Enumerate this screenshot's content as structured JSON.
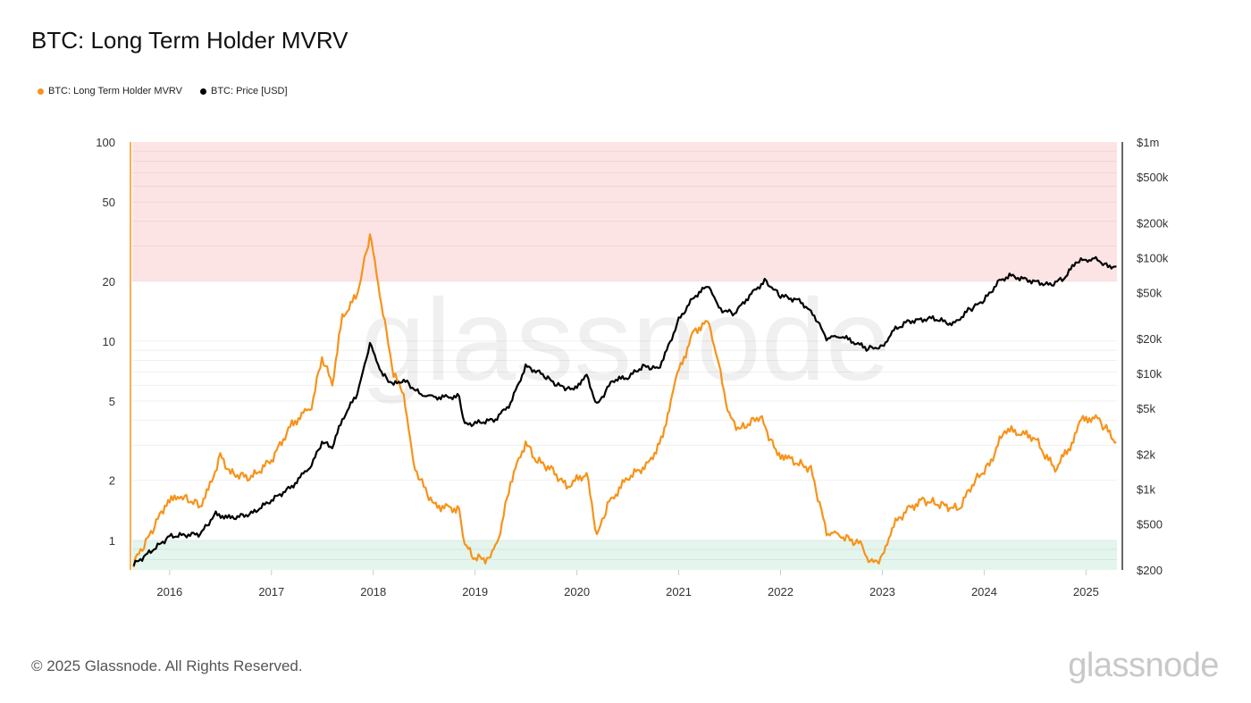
{
  "title": "BTC: Long Term Holder MVRV",
  "footer": "© 2025 Glassnode. All Rights Reserved.",
  "watermark": "glassnode",
  "chart_data": {
    "type": "line",
    "title": "BTC: Long Term Holder MVRV",
    "legend_position": "top-left",
    "grid": true,
    "x_range": [
      "2015-08-20",
      "2025-04-22"
    ],
    "x_ticks": [
      "2016",
      "2017",
      "2018",
      "2019",
      "2020",
      "2021",
      "2022",
      "2023",
      "2024",
      "2025"
    ],
    "y_left": {
      "scale": "log",
      "range": [
        0.71,
        100
      ],
      "ticks": [
        "1",
        "2",
        "5",
        "10",
        "20",
        "50",
        "100"
      ],
      "tick_values": [
        1,
        2,
        5,
        10,
        20,
        50,
        100
      ]
    },
    "y_right": {
      "scale": "log",
      "range": [
        200,
        1000000
      ],
      "ticks": [
        "$200",
        "$500",
        "$1k",
        "$2k",
        "$5k",
        "$10k",
        "$20k",
        "$50k",
        "$100k",
        "$200k",
        "$500k",
        "$1m"
      ],
      "tick_values": [
        200,
        500,
        1000,
        2000,
        5000,
        10000,
        20000,
        50000,
        100000,
        200000,
        500000,
        1000000
      ]
    },
    "bands": [
      {
        "axis": "left",
        "from": 20,
        "to": 100,
        "color": "#fde4e4"
      },
      {
        "axis": "left",
        "from": 0.71,
        "to": 1,
        "color": "#e3f5ec"
      }
    ],
    "series": [
      {
        "name": "BTC: Long Term Holder MVRV",
        "axis": "left",
        "color": "#f7931a",
        "points": [
          [
            "2015-08-25",
            0.77
          ],
          [
            "2015-10-20",
            1.05
          ],
          [
            "2015-12-15",
            1.5
          ],
          [
            "2016-02-05",
            1.67
          ],
          [
            "2016-04-20",
            1.5
          ],
          [
            "2016-05-25",
            1.86
          ],
          [
            "2016-07-01",
            2.67
          ],
          [
            "2016-08-07",
            2.17
          ],
          [
            "2016-10-20",
            2.06
          ],
          [
            "2017-01-01",
            2.53
          ],
          [
            "2017-03-15",
            3.83
          ],
          [
            "2017-05-25",
            4.7
          ],
          [
            "2017-07-01",
            8.3
          ],
          [
            "2017-08-07",
            6.1
          ],
          [
            "2017-09-12",
            13.2
          ],
          [
            "2017-11-05",
            17.1
          ],
          [
            "2017-12-20",
            34.5
          ],
          [
            "2018-02-05",
            13.9
          ],
          [
            "2018-03-15",
            6.8
          ],
          [
            "2018-04-20",
            5.5
          ],
          [
            "2018-05-25",
            2.4
          ],
          [
            "2018-07-01",
            1.86
          ],
          [
            "2018-08-07",
            1.5
          ],
          [
            "2018-11-05",
            1.43
          ],
          [
            "2018-11-25",
            0.95
          ],
          [
            "2019-01-01",
            0.81
          ],
          [
            "2019-02-25",
            0.81
          ],
          [
            "2019-04-01",
            1.1
          ],
          [
            "2019-05-08",
            1.96
          ],
          [
            "2019-07-01",
            3.1
          ],
          [
            "2019-08-07",
            2.53
          ],
          [
            "2019-10-01",
            2.28
          ],
          [
            "2019-11-25",
            1.86
          ],
          [
            "2020-02-05",
            2.17
          ],
          [
            "2020-03-13",
            1.05
          ],
          [
            "2020-04-20",
            1.5
          ],
          [
            "2020-07-01",
            2.06
          ],
          [
            "2020-09-12",
            2.4
          ],
          [
            "2020-11-05",
            3.28
          ],
          [
            "2020-12-15",
            6.1
          ],
          [
            "2021-01-20",
            8.3
          ],
          [
            "2021-02-25",
            11.3
          ],
          [
            "2021-04-20",
            12.5
          ],
          [
            "2021-05-25",
            7.5
          ],
          [
            "2021-07-01",
            4.2
          ],
          [
            "2021-08-07",
            3.6
          ],
          [
            "2021-10-20",
            4.2
          ],
          [
            "2021-12-15",
            2.8
          ],
          [
            "2022-02-05",
            2.53
          ],
          [
            "2022-04-20",
            2.28
          ],
          [
            "2022-06-15",
            1.1
          ],
          [
            "2022-08-07",
            1.05
          ],
          [
            "2022-10-20",
            0.95
          ],
          [
            "2022-11-18",
            0.77
          ],
          [
            "2023-01-01",
            0.81
          ],
          [
            "2023-02-05",
            1.17
          ],
          [
            "2023-04-01",
            1.43
          ],
          [
            "2023-05-25",
            1.59
          ],
          [
            "2023-08-07",
            1.5
          ],
          [
            "2023-10-01",
            1.43
          ],
          [
            "2023-11-25",
            1.96
          ],
          [
            "2024-01-20",
            2.4
          ],
          [
            "2024-03-15",
            3.6
          ],
          [
            "2024-05-08",
            3.45
          ],
          [
            "2024-07-01",
            3.28
          ],
          [
            "2024-08-07",
            2.67
          ],
          [
            "2024-09-12",
            2.28
          ],
          [
            "2024-11-05",
            2.96
          ],
          [
            "2024-12-15",
            4.0
          ],
          [
            "2025-02-05",
            4.2
          ],
          [
            "2025-03-15",
            3.6
          ],
          [
            "2025-04-20",
            3.1
          ]
        ]
      },
      {
        "name": "BTC: Price [USD]",
        "axis": "right",
        "color": "#000000",
        "points": [
          [
            "2015-08-25",
            222
          ],
          [
            "2015-11-25",
            330
          ],
          [
            "2016-01-01",
            390
          ],
          [
            "2016-04-20",
            410
          ],
          [
            "2016-06-15",
            610
          ],
          [
            "2016-08-07",
            560
          ],
          [
            "2016-10-20",
            610
          ],
          [
            "2017-01-01",
            800
          ],
          [
            "2017-03-15",
            1050
          ],
          [
            "2017-05-25",
            1620
          ],
          [
            "2017-07-01",
            2550
          ],
          [
            "2017-08-07",
            2300
          ],
          [
            "2017-09-12",
            4000
          ],
          [
            "2017-11-05",
            6700
          ],
          [
            "2017-12-20",
            18000
          ],
          [
            "2018-02-05",
            9600
          ],
          [
            "2018-03-15",
            8000
          ],
          [
            "2018-04-20",
            8800
          ],
          [
            "2018-06-15",
            6700
          ],
          [
            "2018-08-07",
            6200
          ],
          [
            "2018-11-05",
            6300
          ],
          [
            "2018-11-25",
            3600
          ],
          [
            "2019-01-01",
            3700
          ],
          [
            "2019-03-15",
            4000
          ],
          [
            "2019-05-08",
            5500
          ],
          [
            "2019-07-01",
            11500
          ],
          [
            "2019-08-25",
            10000
          ],
          [
            "2019-10-20",
            8000
          ],
          [
            "2019-12-15",
            7200
          ],
          [
            "2020-02-05",
            9500
          ],
          [
            "2020-03-13",
            5300
          ],
          [
            "2020-05-08",
            8700
          ],
          [
            "2020-07-01",
            9200
          ],
          [
            "2020-08-25",
            11500
          ],
          [
            "2020-10-20",
            11000
          ],
          [
            "2020-11-25",
            17000
          ],
          [
            "2021-01-01",
            29000
          ],
          [
            "2021-02-25",
            46000
          ],
          [
            "2021-04-20",
            58000
          ],
          [
            "2021-05-25",
            36000
          ],
          [
            "2021-07-20",
            33000
          ],
          [
            "2021-09-12",
            47000
          ],
          [
            "2021-11-05",
            63000
          ],
          [
            "2022-01-01",
            47000
          ],
          [
            "2022-03-15",
            42000
          ],
          [
            "2022-05-08",
            30000
          ],
          [
            "2022-06-15",
            20000
          ],
          [
            "2022-08-07",
            21000
          ],
          [
            "2022-11-05",
            16500
          ],
          [
            "2023-01-01",
            16800
          ],
          [
            "2023-02-05",
            23000
          ],
          [
            "2023-04-01",
            28000
          ],
          [
            "2023-07-01",
            30000
          ],
          [
            "2023-09-12",
            26500
          ],
          [
            "2023-11-05",
            35000
          ],
          [
            "2024-01-01",
            43000
          ],
          [
            "2024-02-25",
            63000
          ],
          [
            "2024-04-01",
            70000
          ],
          [
            "2024-07-01",
            62000
          ],
          [
            "2024-08-25",
            58000
          ],
          [
            "2024-10-20",
            68000
          ],
          [
            "2024-11-25",
            92000
          ],
          [
            "2025-01-01",
            96000
          ],
          [
            "2025-02-05",
            98000
          ],
          [
            "2025-03-15",
            85000
          ],
          [
            "2025-04-20",
            84000
          ]
        ]
      }
    ]
  }
}
